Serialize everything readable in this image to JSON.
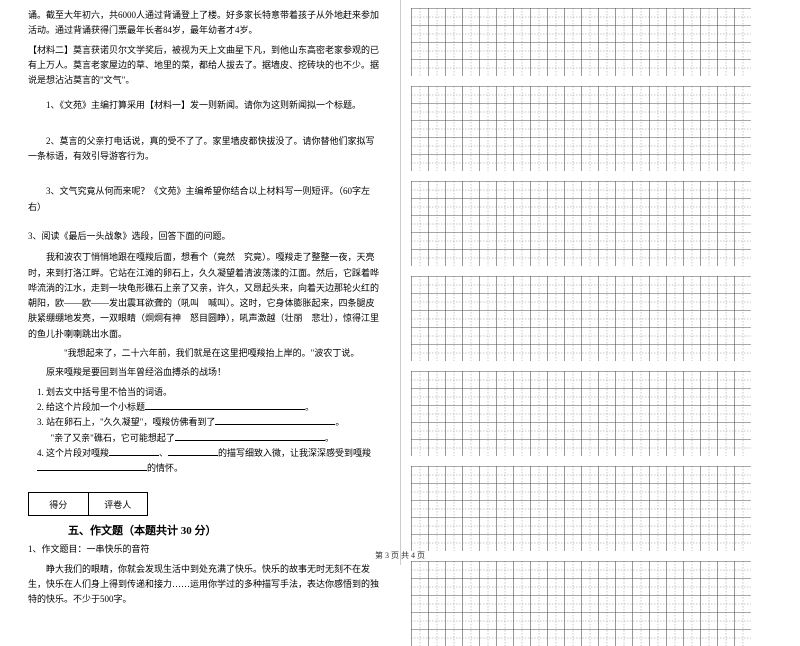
{
  "left": {
    "p1": "诵。截至大年初六，共6000人通过背诵登上了楼。好多家长特意带着孩子从外地赶来参加活动。通过背诵获得门票最年长者84岁，最年幼者才4岁。",
    "material2_label": "【材料二】",
    "material2_text": "莫言获诺贝尔文学奖后，被视为天上文曲星下凡，到他山东高密老家参观的已有上万人。莫言老家屋边的草、地里的菜，都给人拔去了。据墙皮、挖砖块的也不少。据说是想沾沾莫言的\"文气\"。",
    "q1": "1、《文苑》主编打算采用【材料一】发一则新闻。请你为这则新闻拟一个标题。",
    "q2": "2、莫言的父亲打电话说，真的受不了了。家里墙皮都快拔没了。请你替他们家拟写一条标语，有效引导游客行为。",
    "q3": "3、文气究竟从何而来呢？《文苑》主编希望你结合以上材料写一则短评。（60字左右）",
    "readTitle": "3、阅读《最后一头战象》选段，回答下面的问题。",
    "readP1": "我和波农丁悄悄地跟在嘎羧后面，想看个（竟然　究竟）。嘎羧走了整整一夜，天亮时，来到打洛江畔。它站在江滩的卵石上，久久凝望着清波荡漾的江面。然后，它踩着哗哗流淌的江水，走到一块龟形礁石上亲了又亲，许久，又昂起头来，向着天边那轮火红的朝阳，欧——欧——发出震耳欲聋的（吼叫　喊叫）。这时，它身体膨胀起来，四条腿皮肤紧绷绷地发亮，一双眼睛（炯炯有神　怒目圆睁），吼声激越（壮丽　悲壮），惊得江里的鱼儿扑喇喇跳出水面。",
    "readP2": "\"我想起来了，二十六年前，我们就是在这里把嘎羧抬上岸的。\"波农丁说。",
    "readP3": "原来嘎羧是要回到当年曾经浴血搏杀的战场！",
    "sub1": "1. 划去文中括号里不恰当的词语。",
    "sub2a": "2. 给这个片段加一个小标题",
    "sub3a": "3. 站在卵石上，\"久久凝望\"，嘎羧仿佛看到了",
    "sub3b": "\"亲了又亲\"礁石，它可能想起了",
    "sub4a": "4. 这个片段对嘎羧",
    "sub4b": "、",
    "sub4c": "的描写细致入微，让我深深感受到嘎羧",
    "sub4d": "的情怀。",
    "scoreLeft": "得分",
    "scoreRight": "评卷人",
    "sectionTitle": "五、作文题（本题共计 30 分）",
    "essayTitle": "1、作文题目：一串快乐的音符",
    "essayBody": "睁大我们的眼睛，你就会发现生活中到处充满了快乐。快乐的故事无时无刻不在发生，快乐在人们身上得到传递和接力……运用你学过的多种描写手法，表达你感悟到的独特的快乐。不少于500字。"
  },
  "grid": {
    "cols": 20,
    "smallRows": 4,
    "bigRows": 5,
    "cellSize": 17,
    "blocks": 7,
    "lineColor": "#555555",
    "dashColor": "#777777"
  },
  "footer": "第 3 页 共 4 页"
}
